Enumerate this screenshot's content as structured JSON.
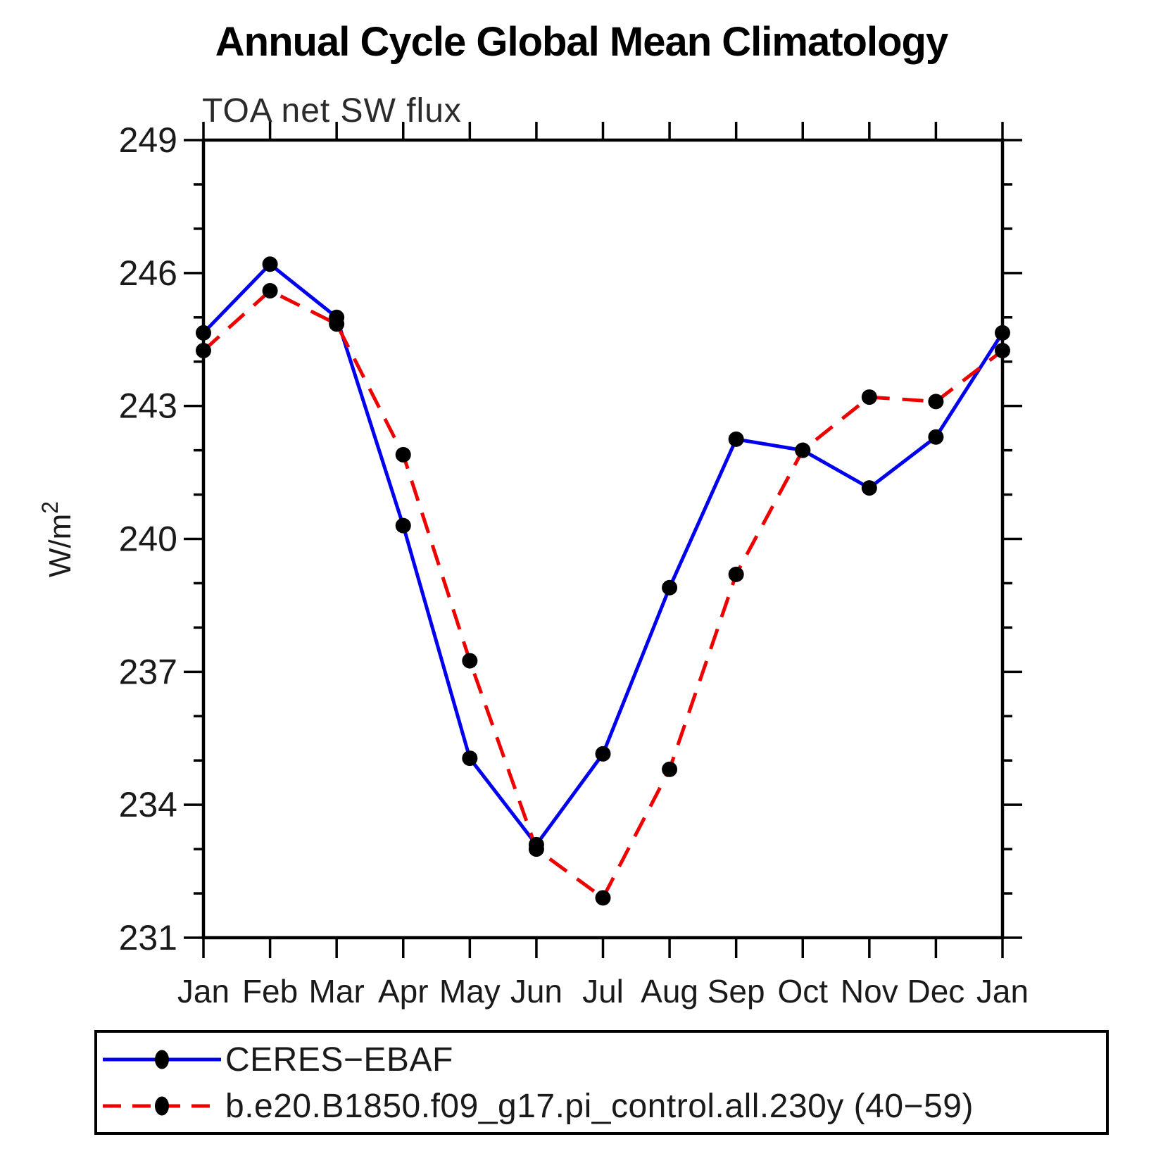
{
  "page": {
    "background_color": "#ffffff",
    "axis_color": "#000000"
  },
  "chart_data": {
    "type": "line",
    "title": "Annual Cycle Global Mean Climatology",
    "subtitle": "TOA net SW flux",
    "ylabel": "W/m",
    "ylabel_superscript": "2",
    "xlabel": "",
    "x_tick_labels": [
      "Jan",
      "Feb",
      "Mar",
      "Apr",
      "May",
      "Jun",
      "Jul",
      "Aug",
      "Sep",
      "Oct",
      "Nov",
      "Dec",
      "Jan"
    ],
    "ylim": [
      231,
      249
    ],
    "y_major_ticks": [
      231,
      234,
      237,
      240,
      243,
      246,
      249
    ],
    "y_minor_step": 1,
    "grid": false,
    "legend_position": "bottom",
    "series": [
      {
        "name": "CERES−EBAF",
        "color": "#0000ee",
        "line_style": "solid",
        "marker": "circle",
        "marker_color": "#000000",
        "values": [
          244.65,
          246.2,
          245.0,
          240.3,
          235.05,
          233.1,
          235.15,
          238.9,
          242.25,
          242.0,
          241.15,
          242.3,
          244.65
        ]
      },
      {
        "name": "b.e20.B1850.f09_g17.pi_control.all.230y (40−59)",
        "color": "#ee0000",
        "line_style": "dashed",
        "marker": "circle",
        "marker_color": "#000000",
        "values": [
          244.25,
          245.6,
          244.85,
          241.9,
          237.25,
          233.0,
          231.9,
          234.8,
          239.2,
          242.0,
          243.2,
          243.1,
          244.25
        ]
      }
    ]
  }
}
